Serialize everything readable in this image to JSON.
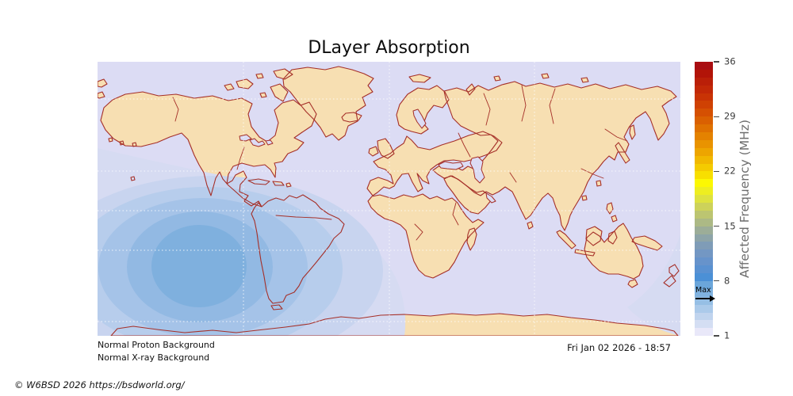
{
  "title": "DLayer Absorption",
  "footer": {
    "status_lines": [
      "Normal Proton Background",
      "Normal X-ray Background"
    ],
    "timestamp": "Fri Jan 02 2026 - 18:57",
    "copyright": "© W6BSD 2026 https://bsdworld.org/"
  },
  "colorbar": {
    "label": "Affected Frequency (MHz)",
    "min": 1,
    "max": 36,
    "ticks": [
      36,
      29,
      22,
      15,
      8,
      1
    ],
    "max_marker": {
      "label": "Max",
      "value": 6
    },
    "colors_top_to_bottom": [
      "#a90d11",
      "#b21408",
      "#ba1f08",
      "#c22807",
      "#c93305",
      "#cf4103",
      "#d55002",
      "#da6001",
      "#df7100",
      "#e48200",
      "#e99300",
      "#eda500",
      "#f1b800",
      "#f4cb00",
      "#f8df00",
      "#fcf802",
      "#eeee20",
      "#dee23f",
      "#cdd25a",
      "#bcc571",
      "#acb985",
      "#9cad98",
      "#8da4a8",
      "#7f9cb7",
      "#7397c3",
      "#6793cb",
      "#5a91d1",
      "#4b90d6",
      "#6ba6da",
      "#80b2df",
      "#96bfe5",
      "#abcaea",
      "#c0d4ee",
      "#d4def3",
      "#e9e8f9"
    ]
  },
  "map": {
    "ocean_color": "#dcdcf4",
    "land_color": "#f7dfb2",
    "coast_color": "#a52f28",
    "grid_color": "#ffffff",
    "absorption_band_colors_outer_to_inner": [
      "#d6dbf2",
      "#c8d4ef",
      "#b7cdec",
      "#a5c3e8",
      "#92b9e3",
      "#7fb0de"
    ]
  },
  "chart_data": {
    "type": "heatmap",
    "title": "DLayer Absorption",
    "projection": "world map, lon -180..180",
    "colorbar_label": "Affected Frequency (MHz)",
    "colorbar_ticks_mhz": [
      1,
      8,
      15,
      22,
      29,
      36
    ],
    "colorbar_range_mhz": [
      1,
      36
    ],
    "contour_levels_shown_mhz": [
      1,
      2,
      3,
      4,
      5,
      6,
      7
    ],
    "max_affected_frequency_mhz": 6,
    "absorption_region": "concentric contours centered over the eastern Pacific west of South America (sub-solar point), faint outer band wraps across the bottom and right (southern terminator)",
    "annotations": [
      "Normal Proton Background",
      "Normal X-ray Background",
      "Max (arrow on colorbar at ~6 MHz)"
    ],
    "timestamp": "Fri Jan 02 2026 - 18:57",
    "legend_position": "right colorbar"
  }
}
